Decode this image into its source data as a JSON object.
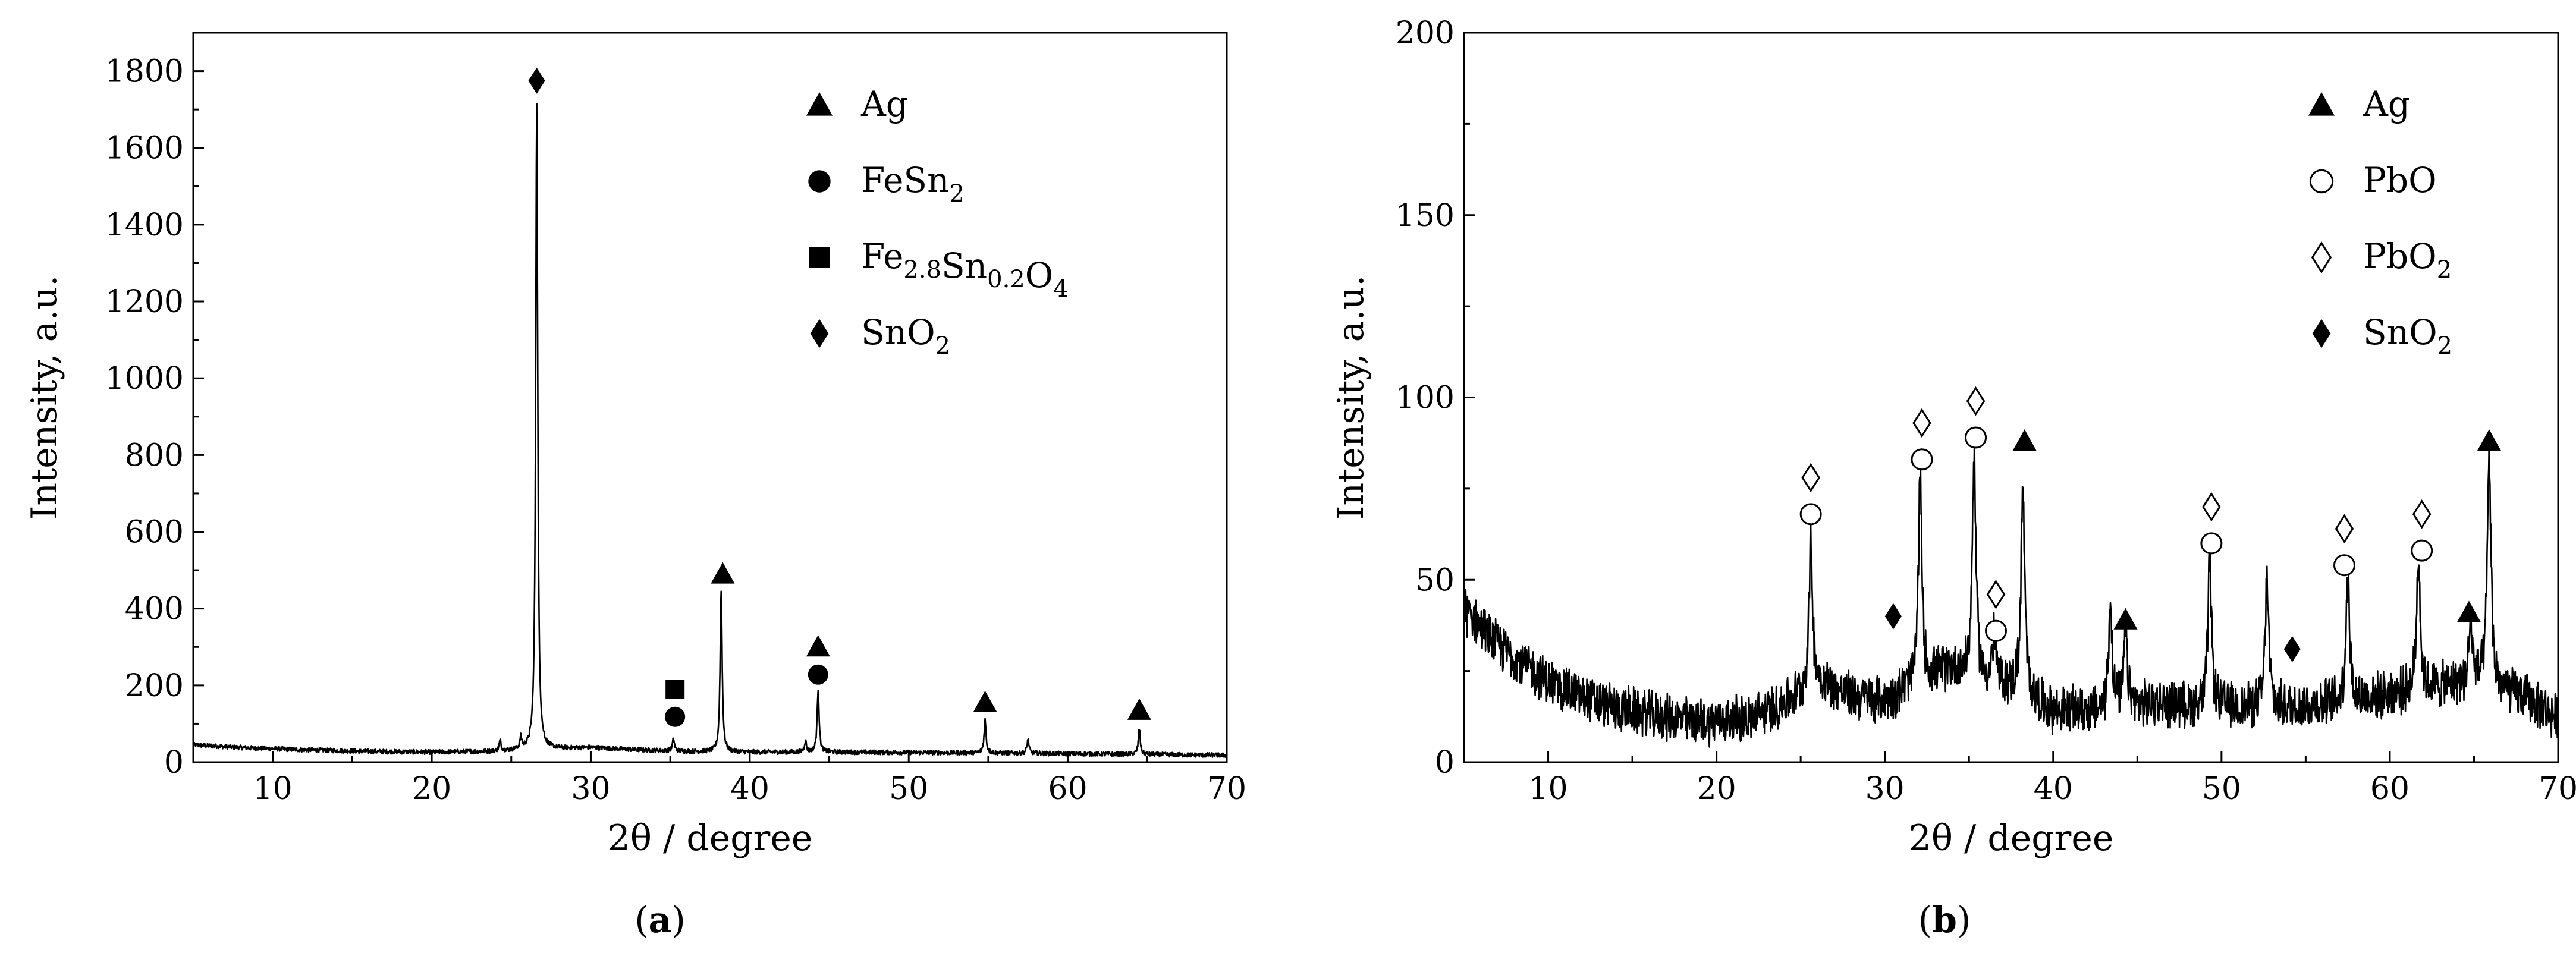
{
  "chart_data": [
    {
      "type": "line",
      "panel_label": "a",
      "xlabel": "2θ / degree",
      "ylabel": "Intensity, a.u.",
      "xlim": [
        5,
        70
      ],
      "ylim": [
        0,
        1900
      ],
      "xticks": [
        10,
        20,
        30,
        40,
        50,
        60,
        70
      ],
      "yticks": [
        0,
        200,
        400,
        600,
        800,
        1000,
        1200,
        1400,
        1600,
        1800
      ],
      "legend_position": "top-right",
      "legend": [
        {
          "marker": "filled-triangle",
          "label": "Ag",
          "sub": ""
        },
        {
          "marker": "filled-circle",
          "label": "FeSn",
          "sub": "2"
        },
        {
          "marker": "filled-square",
          "label": "Fe",
          "sub": "2.8",
          "label2": "Sn",
          "sub2": "0.2",
          "label3": "O",
          "sub3": "4"
        },
        {
          "marker": "filled-diamond",
          "label": "SnO",
          "sub": "2"
        }
      ],
      "series": [
        {
          "values": {
            "baseline": [
              [
                5,
                45
              ],
              [
                8,
                38
              ],
              [
                12,
                32
              ],
              [
                16,
                28
              ],
              [
                20,
                26
              ],
              [
                24,
                28
              ],
              [
                28,
                35
              ],
              [
                30,
                38
              ],
              [
                33,
                32
              ],
              [
                36,
                28
              ],
              [
                40,
                26
              ],
              [
                45,
                26
              ],
              [
                50,
                25
              ],
              [
                55,
                24
              ],
              [
                60,
                22
              ],
              [
                65,
                20
              ],
              [
                70,
                18
              ]
            ],
            "peaks": [
              [
                24.3,
                55
              ],
              [
                25.6,
                60
              ],
              [
                26.6,
                1720
              ],
              [
                35.2,
                60
              ],
              [
                38.2,
                450
              ],
              [
                43.5,
                55
              ],
              [
                44.3,
                190
              ],
              [
                54.8,
                110
              ],
              [
                57.5,
                60
              ],
              [
                64.5,
                85
              ]
            ]
          }
        }
      ],
      "annotations": [
        {
          "marker": "filled-diamond",
          "x": 26.6,
          "y": 1775
        },
        {
          "marker": "filled-square",
          "x": 35.3,
          "y": 190
        },
        {
          "marker": "filled-circle",
          "x": 35.3,
          "y": 118
        },
        {
          "marker": "filled-triangle",
          "x": 38.3,
          "y": 490
        },
        {
          "marker": "filled-triangle",
          "x": 44.3,
          "y": 300
        },
        {
          "marker": "filled-circle",
          "x": 44.3,
          "y": 228
        },
        {
          "marker": "filled-triangle",
          "x": 54.8,
          "y": 155
        },
        {
          "marker": "filled-triangle",
          "x": 64.5,
          "y": 135
        }
      ]
    },
    {
      "type": "line",
      "panel_label": "b",
      "xlabel": "2θ / degree",
      "ylabel": "Intensity, a.u.",
      "xlim": [
        5,
        70
      ],
      "ylim": [
        0,
        200
      ],
      "xticks": [
        10,
        20,
        30,
        40,
        50,
        60,
        70
      ],
      "yticks": [
        0,
        50,
        100,
        150,
        200
      ],
      "legend_position": "top-right",
      "legend": [
        {
          "marker": "filled-triangle",
          "label": "Ag",
          "sub": ""
        },
        {
          "marker": "open-circle",
          "label": "PbO",
          "sub": ""
        },
        {
          "marker": "open-diamond",
          "label": "PbO",
          "sub": "2"
        },
        {
          "marker": "filled-diamond",
          "label": "SnO",
          "sub": "2"
        }
      ],
      "series": [
        {
          "values": {
            "baseline": [
              [
                5,
                42
              ],
              [
                7,
                32
              ],
              [
                10,
                22
              ],
              [
                13,
                16
              ],
              [
                16,
                13
              ],
              [
                19,
                11
              ],
              [
                22,
                12
              ],
              [
                24,
                16
              ],
              [
                26,
                22
              ],
              [
                28,
                18
              ],
              [
                30,
                17
              ],
              [
                32,
                22
              ],
              [
                34,
                26
              ],
              [
                36,
                22
              ],
              [
                38,
                20
              ],
              [
                40,
                14
              ],
              [
                43,
                14
              ],
              [
                46,
                16
              ],
              [
                50,
                15
              ],
              [
                54,
                15
              ],
              [
                58,
                17
              ],
              [
                62,
                20
              ],
              [
                65,
                22
              ],
              [
                68,
                18
              ],
              [
                70,
                12
              ]
            ],
            "peaks": [
              [
                25.6,
                60
              ],
              [
                32.1,
                78
              ],
              [
                35.3,
                85
              ],
              [
                36.5,
                35
              ],
              [
                38.2,
                75
              ],
              [
                43.4,
                44
              ],
              [
                44.3,
                35
              ],
              [
                49.3,
                55
              ],
              [
                52.7,
                50
              ],
              [
                57.5,
                52
              ],
              [
                61.7,
                57
              ],
              [
                64.8,
                38
              ],
              [
                65.9,
                85
              ]
            ]
          }
        }
      ],
      "annotations": [
        {
          "marker": "open-diamond",
          "x": 25.6,
          "y": 78
        },
        {
          "marker": "open-circle",
          "x": 25.6,
          "y": 68
        },
        {
          "marker": "filled-diamond",
          "x": 30.5,
          "y": 40
        },
        {
          "marker": "open-diamond",
          "x": 32.2,
          "y": 93
        },
        {
          "marker": "open-circle",
          "x": 32.2,
          "y": 83
        },
        {
          "marker": "open-diamond",
          "x": 35.4,
          "y": 99
        },
        {
          "marker": "open-circle",
          "x": 35.4,
          "y": 89
        },
        {
          "marker": "open-diamond",
          "x": 36.6,
          "y": 46
        },
        {
          "marker": "open-circle",
          "x": 36.6,
          "y": 36
        },
        {
          "marker": "filled-triangle",
          "x": 38.3,
          "y": 88
        },
        {
          "marker": "filled-triangle",
          "x": 44.3,
          "y": 39
        },
        {
          "marker": "open-diamond",
          "x": 49.4,
          "y": 70
        },
        {
          "marker": "open-circle",
          "x": 49.4,
          "y": 60
        },
        {
          "marker": "filled-diamond",
          "x": 54.2,
          "y": 31
        },
        {
          "marker": "open-diamond",
          "x": 57.3,
          "y": 64
        },
        {
          "marker": "open-circle",
          "x": 57.3,
          "y": 54
        },
        {
          "marker": "open-diamond",
          "x": 61.9,
          "y": 68
        },
        {
          "marker": "open-circle",
          "x": 61.9,
          "y": 58
        },
        {
          "marker": "filled-triangle",
          "x": 64.7,
          "y": 41
        },
        {
          "marker": "filled-triangle",
          "x": 65.9,
          "y": 88
        }
      ]
    }
  ]
}
